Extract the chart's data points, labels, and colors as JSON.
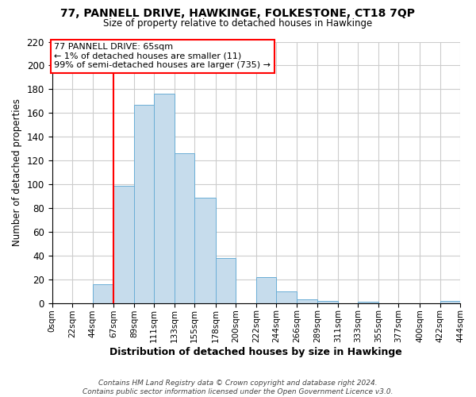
{
  "title": "77, PANNELL DRIVE, HAWKINGE, FOLKESTONE, CT18 7QP",
  "subtitle": "Size of property relative to detached houses in Hawkinge",
  "xlabel": "Distribution of detached houses by size in Hawkinge",
  "ylabel": "Number of detached properties",
  "bin_edges": [
    0,
    22,
    44,
    67,
    89,
    111,
    133,
    155,
    178,
    200,
    222,
    244,
    266,
    289,
    311,
    333,
    355,
    377,
    400,
    422,
    444
  ],
  "bin_counts": [
    0,
    0,
    16,
    99,
    167,
    176,
    126,
    89,
    38,
    0,
    22,
    10,
    3,
    2,
    0,
    1,
    0,
    0,
    0,
    2
  ],
  "tick_labels": [
    "0sqm",
    "22sqm",
    "44sqm",
    "67sqm",
    "89sqm",
    "111sqm",
    "133sqm",
    "155sqm",
    "178sqm",
    "200sqm",
    "222sqm",
    "244sqm",
    "266sqm",
    "289sqm",
    "311sqm",
    "333sqm",
    "355sqm",
    "377sqm",
    "400sqm",
    "422sqm",
    "444sqm"
  ],
  "bar_color": "#c6dcec",
  "bar_edge_color": "#6baed6",
  "vline_x": 67,
  "vline_color": "red",
  "annotation_box_text": "77 PANNELL DRIVE: 65sqm\n← 1% of detached houses are smaller (11)\n99% of semi-detached houses are larger (735) →",
  "ylim": [
    0,
    220
  ],
  "yticks": [
    0,
    20,
    40,
    60,
    80,
    100,
    120,
    140,
    160,
    180,
    200,
    220
  ],
  "footer_text": "Contains HM Land Registry data © Crown copyright and database right 2024.\nContains public sector information licensed under the Open Government Licence v3.0.",
  "background_color": "#ffffff",
  "grid_color": "#cccccc"
}
